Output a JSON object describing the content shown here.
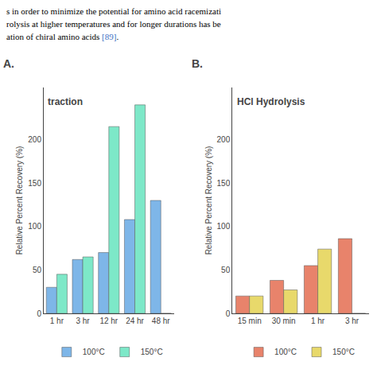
{
  "chart_data": [
    {
      "type": "bar",
      "title": "traction",
      "annotations": [
        {
          "text": "A."
        }
      ],
      "categories": [
        "1 hr",
        "3 hr",
        "12 hr",
        "24 hr",
        "48 hr"
      ],
      "series": [
        {
          "name": "100°C",
          "color": "#7EB6E8",
          "values": [
            30,
            62,
            70,
            108,
            130
          ]
        },
        {
          "name": "150°C",
          "color": "#7DE8C8",
          "values": [
            45,
            65,
            215,
            240,
            0
          ]
        }
      ],
      "ylabel": "Relative Percent Recovery (%)",
      "ylim": [
        0,
        260
      ],
      "yticks": [
        0,
        50,
        100,
        150,
        200
      ],
      "grid": false,
      "legend": "bottom"
    },
    {
      "type": "bar",
      "title": "HCl Hydrolysis",
      "annotations": [
        {
          "text": "B."
        }
      ],
      "categories": [
        "15 min",
        "30 min",
        "1 hr",
        "3 hr"
      ],
      "series": [
        {
          "name": "100°C",
          "color": "#E8836B",
          "values": [
            20,
            38,
            55,
            86
          ]
        },
        {
          "name": "150°C",
          "color": "#E8D96B",
          "values": [
            20,
            27,
            74,
            0
          ]
        }
      ],
      "ylabel": "Relative Percent Recovery (%)",
      "ylim": [
        0,
        260
      ],
      "yticks": [
        0,
        50,
        100,
        150,
        200
      ],
      "grid": false,
      "legend": "bottom"
    }
  ],
  "annotations": [
    {
      "text": "s in order to minimize the potential for amino acid racemizati",
      "color": "#000000"
    },
    {
      "text": "rolysis at higher temperatures and for longer durations has be",
      "color": "#000000"
    },
    {
      "text": "ation of chiral amino acids [89].",
      "color": "#000000",
      "highlight": {
        "text": "[89]",
        "color": "#4472C4"
      }
    }
  ]
}
